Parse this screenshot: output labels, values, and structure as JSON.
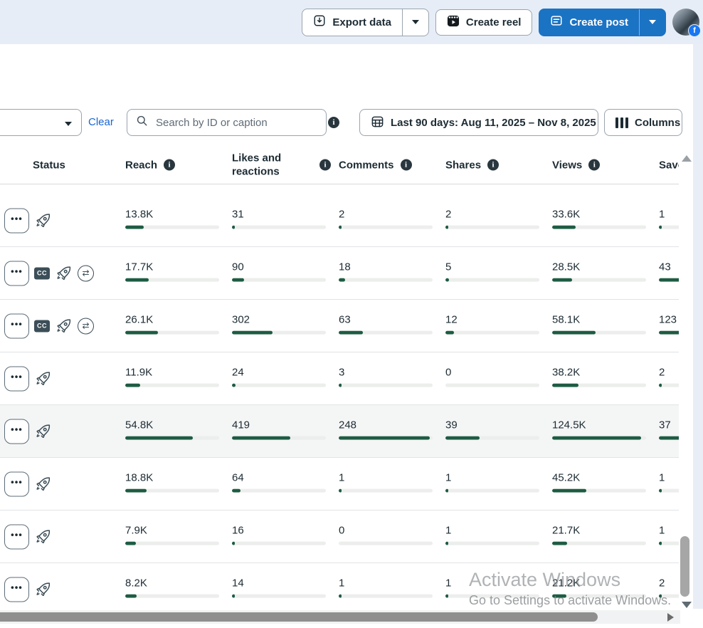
{
  "colors": {
    "accent_blue": "#1b73c4",
    "link_blue": "#1766d1",
    "bar_green": "#1d5c43",
    "bar_track": "#eceeec",
    "topbar_bg": "#e7edf6",
    "highlight_row": "#f4f5f5"
  },
  "topbar": {
    "export_label": "Export data",
    "create_reel_label": "Create reel",
    "create_post_label": "Create post"
  },
  "filters": {
    "clear_label": "Clear",
    "search_placeholder": "Search by ID or caption",
    "date_label": "Last 90 days: Aug 11, 2025 – Nov 8, 2025",
    "columns_label": "Columns"
  },
  "glyphs": {
    "cc": "CC",
    "crosspost": "⇄",
    "more": "•••",
    "info": "i",
    "fb": "f"
  },
  "table": {
    "columns": [
      {
        "key": "status",
        "label": "Status",
        "info": false
      },
      {
        "key": "reach",
        "label": "Reach",
        "info": true
      },
      {
        "key": "likes",
        "label": "Likes and reactions",
        "info": true
      },
      {
        "key": "comments",
        "label": "Comments",
        "info": true
      },
      {
        "key": "shares",
        "label": "Shares",
        "info": true
      },
      {
        "key": "views",
        "label": "Views",
        "info": true
      },
      {
        "key": "saves",
        "label": "Saves",
        "info": true
      }
    ],
    "rows": [
      {
        "icons": [
          "boost"
        ],
        "highlighted": false,
        "metrics": {
          "reach": {
            "value": "13.8K",
            "pct": 20
          },
          "likes": {
            "value": "31",
            "pct": 3
          },
          "comments": {
            "value": "2",
            "pct": 2
          },
          "shares": {
            "value": "2",
            "pct": 2
          },
          "views": {
            "value": "33.6K",
            "pct": 25
          },
          "saves": {
            "value": "1",
            "pct": 2
          }
        }
      },
      {
        "icons": [
          "cc",
          "boost",
          "crosspost"
        ],
        "highlighted": false,
        "metrics": {
          "reach": {
            "value": "17.7K",
            "pct": 25
          },
          "likes": {
            "value": "90",
            "pct": 13
          },
          "comments": {
            "value": "18",
            "pct": 7
          },
          "shares": {
            "value": "5",
            "pct": 4
          },
          "views": {
            "value": "28.5K",
            "pct": 21
          },
          "saves": {
            "value": "43",
            "pct": 80
          }
        }
      },
      {
        "icons": [
          "cc",
          "boost",
          "crosspost"
        ],
        "highlighted": false,
        "metrics": {
          "reach": {
            "value": "26.1K",
            "pct": 35
          },
          "likes": {
            "value": "302",
            "pct": 43
          },
          "comments": {
            "value": "63",
            "pct": 26
          },
          "shares": {
            "value": "12",
            "pct": 9
          },
          "views": {
            "value": "58.1K",
            "pct": 46
          },
          "saves": {
            "value": "123",
            "pct": 100
          }
        }
      },
      {
        "icons": [
          "boost"
        ],
        "highlighted": false,
        "metrics": {
          "reach": {
            "value": "11.9K",
            "pct": 16
          },
          "likes": {
            "value": "24",
            "pct": 4
          },
          "comments": {
            "value": "3",
            "pct": 2
          },
          "shares": {
            "value": "0",
            "pct": 0
          },
          "views": {
            "value": "38.2K",
            "pct": 28
          },
          "saves": {
            "value": "2",
            "pct": 2
          }
        }
      },
      {
        "icons": [
          "boost"
        ],
        "highlighted": true,
        "metrics": {
          "reach": {
            "value": "54.8K",
            "pct": 72
          },
          "likes": {
            "value": "419",
            "pct": 62
          },
          "comments": {
            "value": "248",
            "pct": 97
          },
          "shares": {
            "value": "39",
            "pct": 36
          },
          "views": {
            "value": "124.5K",
            "pct": 95
          },
          "saves": {
            "value": "37",
            "pct": 60
          }
        }
      },
      {
        "icons": [
          "boost"
        ],
        "highlighted": false,
        "metrics": {
          "reach": {
            "value": "18.8K",
            "pct": 23
          },
          "likes": {
            "value": "64",
            "pct": 9
          },
          "comments": {
            "value": "1",
            "pct": 1
          },
          "shares": {
            "value": "1",
            "pct": 1
          },
          "views": {
            "value": "45.2K",
            "pct": 36
          },
          "saves": {
            "value": "1",
            "pct": 1
          }
        }
      },
      {
        "icons": [
          "boost"
        ],
        "highlighted": false,
        "metrics": {
          "reach": {
            "value": "7.9K",
            "pct": 11
          },
          "likes": {
            "value": "16",
            "pct": 3
          },
          "comments": {
            "value": "0",
            "pct": 0
          },
          "shares": {
            "value": "1",
            "pct": 1
          },
          "views": {
            "value": "21.7K",
            "pct": 16
          },
          "saves": {
            "value": "1",
            "pct": 1
          }
        }
      },
      {
        "icons": [
          "boost"
        ],
        "highlighted": false,
        "metrics": {
          "reach": {
            "value": "8.2K",
            "pct": 12
          },
          "likes": {
            "value": "14",
            "pct": 3
          },
          "comments": {
            "value": "1",
            "pct": 1
          },
          "shares": {
            "value": "1",
            "pct": 1
          },
          "views": {
            "value": "21.2K",
            "pct": 15
          },
          "saves": {
            "value": "2",
            "pct": 2
          }
        }
      }
    ]
  },
  "watermark": {
    "line1": "Activate Windows",
    "line2": "Go to Settings to activate Windows."
  }
}
